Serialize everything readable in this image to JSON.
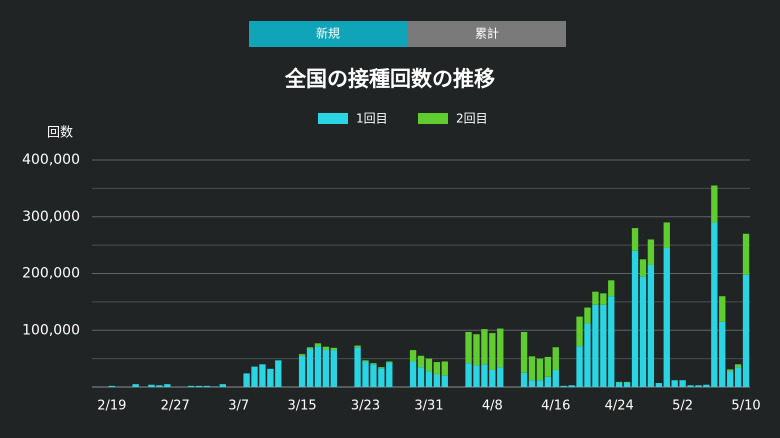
{
  "tabs": [
    {
      "label": "新規",
      "active": true
    },
    {
      "label": "累計",
      "active": false
    }
  ],
  "chart_data": {
    "type": "stacked_bar",
    "title": "全国の接種回数の推移",
    "ylabel": "回数",
    "categories": [
      null,
      null,
      "2/19",
      null,
      null,
      null,
      null,
      null,
      null,
      null,
      "2/27",
      null,
      null,
      null,
      null,
      null,
      null,
      null,
      "3/7",
      null,
      null,
      null,
      null,
      null,
      null,
      null,
      "3/15",
      null,
      null,
      null,
      null,
      null,
      null,
      null,
      "3/23",
      null,
      null,
      null,
      null,
      null,
      null,
      null,
      "3/31",
      null,
      null,
      null,
      null,
      null,
      null,
      null,
      "4/8",
      null,
      null,
      null,
      null,
      null,
      null,
      null,
      "4/16",
      null,
      null,
      null,
      null,
      null,
      null,
      null,
      "4/24",
      null,
      null,
      null,
      null,
      null,
      null,
      null,
      "5/2",
      null,
      null,
      null,
      null,
      null,
      null,
      null,
      "5/10"
    ],
    "series": [
      {
        "name": "1回目",
        "color": "#2ad4e2",
        "values": [
          0,
          0,
          2000,
          0,
          0,
          5000,
          0,
          4000,
          3000,
          5000,
          0,
          0,
          2000,
          2000,
          2000,
          1000,
          5000,
          0,
          0,
          24000,
          36000,
          40000,
          32000,
          47000,
          0,
          0,
          55000,
          67000,
          72000,
          66000,
          65000,
          0,
          0,
          70000,
          45000,
          40000,
          33000,
          43000,
          0,
          0,
          45000,
          35000,
          28000,
          22000,
          20000,
          0,
          0,
          42000,
          38000,
          40000,
          30000,
          35000,
          0,
          0,
          25000,
          12000,
          12000,
          18000,
          30000,
          2000,
          3000,
          72000,
          112000,
          145000,
          145000,
          160000,
          8000,
          8000,
          240000,
          195000,
          215000,
          7000,
          245000,
          12000,
          12000,
          3000,
          3000,
          4000,
          290000,
          115000,
          28000,
          35000,
          198000
        ]
      },
      {
        "name": "2回目",
        "color": "#5fcc2f",
        "values": [
          0,
          0,
          0,
          0,
          0,
          0,
          0,
          0,
          0,
          0,
          0,
          0,
          0,
          0,
          0,
          0,
          0,
          0,
          0,
          0,
          0,
          0,
          0,
          0,
          0,
          0,
          3000,
          3000,
          5000,
          5000,
          4000,
          0,
          0,
          3000,
          2000,
          2000,
          2000,
          2000,
          0,
          0,
          20000,
          20000,
          22000,
          22000,
          25000,
          0,
          0,
          55000,
          55000,
          62000,
          65000,
          68000,
          0,
          0,
          72000,
          42000,
          38000,
          35000,
          40000,
          0,
          0,
          52000,
          28000,
          23000,
          20000,
          28000,
          1000,
          1000,
          40000,
          30000,
          45000,
          0,
          45000,
          0,
          0,
          0,
          0,
          0,
          65000,
          45000,
          3000,
          5000,
          72000
        ]
      }
    ],
    "ylim": [
      0,
      400000
    ],
    "yticks": [
      {
        "value": 100000,
        "label": "100,000"
      },
      {
        "value": 200000,
        "label": "200,000"
      },
      {
        "value": 300000,
        "label": "300,000"
      },
      {
        "value": 400000,
        "label": "400,000"
      }
    ],
    "minor_yticks": [
      50000,
      150000,
      250000,
      350000
    ],
    "grid": true
  }
}
